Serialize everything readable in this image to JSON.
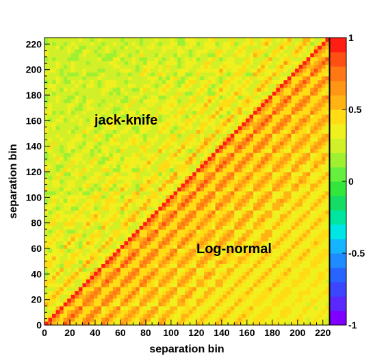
{
  "chart_data": {
    "type": "heatmap",
    "title": "",
    "xlabel": "separation bin",
    "ylabel": "separation bin",
    "xlim": [
      0,
      225
    ],
    "ylim": [
      0,
      225
    ],
    "x_ticks": [
      0,
      20,
      40,
      60,
      80,
      100,
      120,
      140,
      160,
      180,
      200,
      220
    ],
    "y_ticks": [
      0,
      20,
      40,
      60,
      80,
      100,
      120,
      140,
      160,
      180,
      200,
      220
    ],
    "colorbar": {
      "range": [
        -1,
        1
      ],
      "tick_values": [
        1,
        0.5,
        0,
        -0.5,
        -1
      ],
      "tick_labels": [
        "1",
        "0.5",
        "0",
        "-0.5",
        "-1"
      ],
      "colors": [
        "#7f00ff",
        "#5a28ff",
        "#3c46ff",
        "#2864ff",
        "#1e8cff",
        "#14b4ff",
        "#00e6e6",
        "#00e6a0",
        "#14dc64",
        "#32e63c",
        "#64f03c",
        "#a0f032",
        "#d2f028",
        "#f0f01e",
        "#ffdc14",
        "#ffb414",
        "#ff9614",
        "#ff7814",
        "#ff5014",
        "#ff1e14"
      ]
    },
    "annotations": [
      {
        "text": "jack-knife",
        "region": "upper-left triangle"
      },
      {
        "text": "Log-normal",
        "region": "lower-right triangle"
      }
    ],
    "diagonal_value": 1,
    "block_size_bins": 15
  }
}
